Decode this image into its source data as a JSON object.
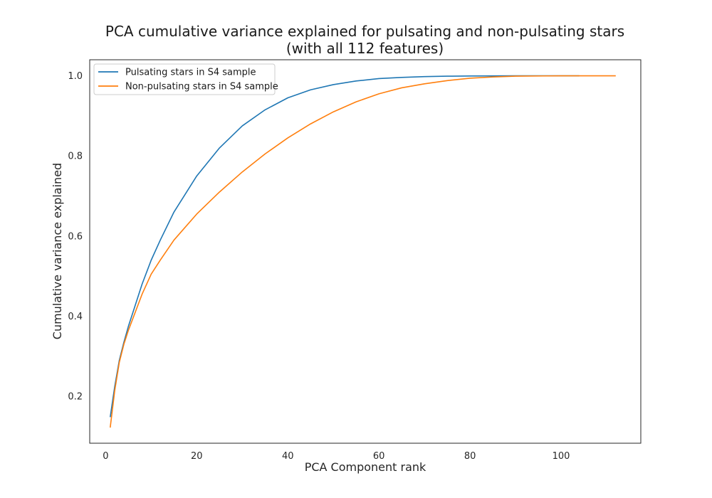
{
  "chart_data": {
    "type": "line",
    "title": "PCA cumulative variance explained for pulsating and non-pulsating stars",
    "subtitle": "(with all 112 features)",
    "xlabel": "PCA Component rank",
    "ylabel": "Cumulative variance explained",
    "xlim": [
      -3.5,
      117.5
    ],
    "ylim": [
      0.083,
      1.04
    ],
    "xticks": [
      0,
      20,
      40,
      60,
      80,
      100
    ],
    "yticks": [
      0.2,
      0.4,
      0.6,
      0.8,
      1.0
    ],
    "ytick_labels": [
      "0.2",
      "0.4",
      "0.6",
      "0.8",
      "1.0"
    ],
    "grid": false,
    "legend_position": "upper-left",
    "series": [
      {
        "name": "Pulsating stars in S4 sample",
        "color": "#1f77b4",
        "x": [
          1,
          2,
          3,
          4,
          5,
          6,
          8,
          10,
          12,
          15,
          20,
          25,
          30,
          35,
          40,
          45,
          50,
          55,
          60,
          65,
          70,
          75,
          80,
          90,
          100,
          104
        ],
        "y": [
          0.148,
          0.225,
          0.29,
          0.335,
          0.375,
          0.41,
          0.48,
          0.54,
          0.59,
          0.66,
          0.75,
          0.82,
          0.875,
          0.915,
          0.945,
          0.965,
          0.978,
          0.987,
          0.993,
          0.996,
          0.998,
          0.999,
          0.9995,
          1.0,
          1.0,
          1.0
        ]
      },
      {
        "name": "Non-pulsating stars in S4 sample",
        "color": "#ff7f0e",
        "x": [
          1,
          2,
          3,
          4,
          5,
          6,
          8,
          10,
          12,
          15,
          20,
          25,
          30,
          35,
          40,
          45,
          50,
          55,
          60,
          65,
          70,
          75,
          80,
          85,
          90,
          100,
          112
        ],
        "y": [
          0.122,
          0.215,
          0.285,
          0.33,
          0.365,
          0.395,
          0.455,
          0.505,
          0.54,
          0.59,
          0.655,
          0.71,
          0.76,
          0.805,
          0.845,
          0.88,
          0.91,
          0.935,
          0.955,
          0.97,
          0.98,
          0.988,
          0.994,
          0.997,
          0.999,
          1.0,
          1.0
        ]
      }
    ]
  }
}
